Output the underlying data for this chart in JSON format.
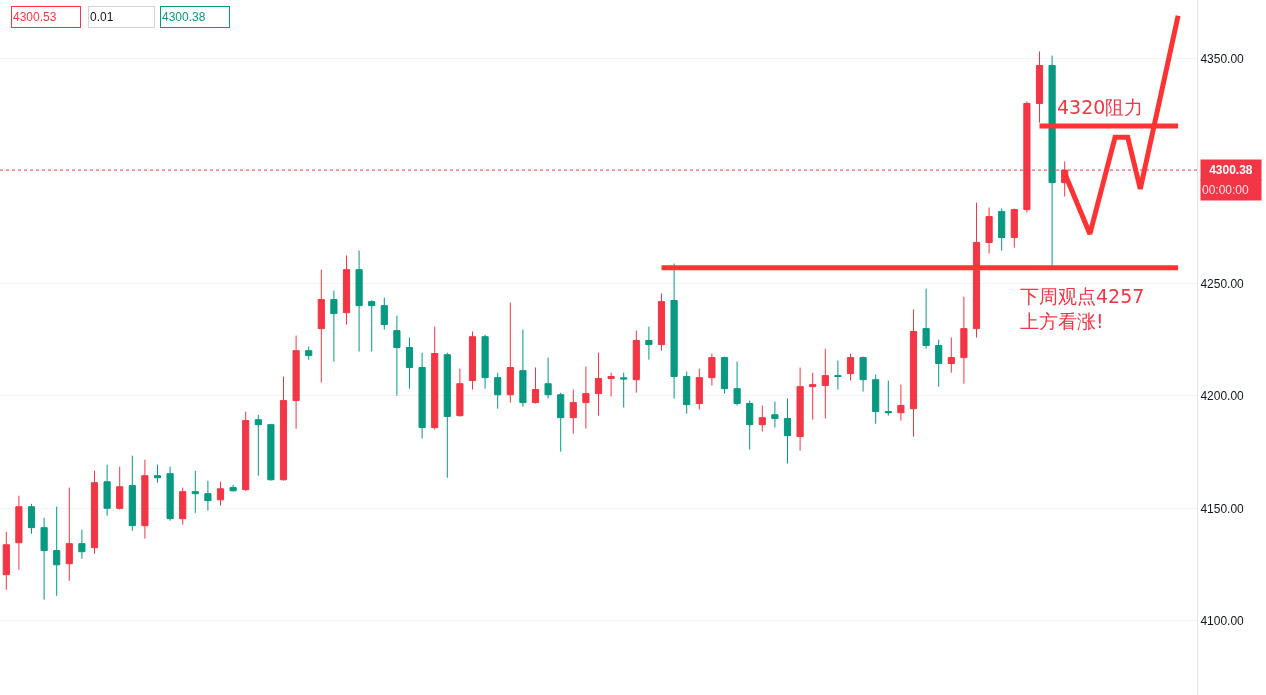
{
  "chart_data": {
    "type": "candlestick",
    "categories": [
      null,
      null,
      null,
      null,
      null,
      null,
      null,
      null,
      null,
      null,
      null,
      null,
      null,
      null,
      null,
      null,
      null,
      null,
      null,
      null,
      null,
      null,
      null,
      null,
      null,
      null,
      null,
      null,
      null,
      null,
      null,
      null,
      null,
      null,
      null,
      null,
      null,
      null,
      null,
      null,
      null,
      null,
      null,
      null,
      null,
      null,
      null,
      null,
      null,
      null,
      null,
      null,
      null,
      null,
      null,
      null,
      null,
      null,
      null,
      null,
      null,
      null,
      null,
      null,
      null,
      null,
      null,
      null,
      null,
      null,
      null,
      null,
      null,
      null,
      null,
      null,
      null,
      null,
      null,
      null,
      null,
      null,
      null,
      null,
      null,
      null,
      null,
      null,
      null,
      null,
      null,
      null,
      null,
      null,
      null
    ],
    "ohlc": [
      [
        4120.5,
        4139.6,
        4113.8,
        4133.8
      ],
      [
        4134.7,
        4155.6,
        4122.7,
        4150.7
      ],
      [
        4150.7,
        4152.0,
        4138.7,
        4141.4
      ],
      [
        4141.4,
        4145.8,
        4109.4,
        4131.2
      ],
      [
        4131.2,
        4150.7,
        4111.1,
        4124.9
      ],
      [
        4125.4,
        4159.2,
        4117.8,
        4134.3
      ],
      [
        4134.3,
        4140.5,
        4127.6,
        4130.7
      ],
      [
        4132.5,
        4166.7,
        4129.8,
        4161.4
      ],
      [
        4161.8,
        4169.4,
        4146.7,
        4150.0
      ],
      [
        4150.0,
        4168.5,
        4149.4,
        4159.6
      ],
      [
        4160.1,
        4173.4,
        4140.0,
        4142.3
      ],
      [
        4142.3,
        4171.6,
        4136.5,
        4164.5
      ],
      [
        4164.5,
        4169.4,
        4161.4,
        4163.6
      ],
      [
        4165.4,
        4168.5,
        4144.5,
        4145.4
      ],
      [
        4145.4,
        4159.2,
        4142.7,
        4157.4
      ],
      [
        4157.4,
        4166.7,
        4148.0,
        4156.5
      ],
      [
        4156.5,
        4162.3,
        4149.0,
        4153.4
      ],
      [
        4153.8,
        4161.8,
        4151.2,
        4158.7
      ],
      [
        4159.2,
        4160.5,
        4157.5,
        4157.8
      ],
      [
        4158.3,
        4193.0,
        4157.8,
        4189.0
      ],
      [
        4189.4,
        4191.6,
        4164.5,
        4187.2
      ],
      [
        4187.2,
        4187.6,
        4162.3,
        4162.7
      ],
      [
        4162.7,
        4208.6,
        4162.3,
        4197.9
      ],
      [
        4197.9,
        4226.8,
        4185.4,
        4220.1
      ],
      [
        4220.1,
        4221.9,
        4216.1,
        4217.9
      ],
      [
        4229.9,
        4256.1,
        4205.9,
        4242.8
      ],
      [
        4242.8,
        4246.8,
        4215.2,
        4236.6
      ],
      [
        4237.0,
        4262.4,
        4231.7,
        4256.1
      ],
      [
        4256.1,
        4264.6,
        4219.7,
        4240.1
      ],
      [
        4241.9,
        4242.5,
        4219.7,
        4240.1
      ],
      [
        4240.1,
        4243.7,
        4229.5,
        4231.7
      ],
      [
        4229.0,
        4235.7,
        4200.1,
        4221.5
      ],
      [
        4221.5,
        4225.9,
        4203.2,
        4212.6
      ],
      [
        4212.6,
        4219.2,
        4181.0,
        4185.9
      ],
      [
        4185.9,
        4230.8,
        4185.0,
        4218.8
      ],
      [
        4218.3,
        4219.2,
        4163.6,
        4190.8
      ],
      [
        4191.2,
        4212.1,
        4190.8,
        4205.4
      ],
      [
        4206.8,
        4228.6,
        4202.8,
        4226.3
      ],
      [
        4226.3,
        4227.2,
        4203.2,
        4208.1
      ],
      [
        4208.1,
        4210.3,
        4194.3,
        4200.5
      ],
      [
        4200.5,
        4241.5,
        4197.0,
        4212.6
      ],
      [
        4211.2,
        4229.5,
        4195.2,
        4197.0
      ],
      [
        4197.0,
        4212.6,
        4196.6,
        4202.8
      ],
      [
        4205.4,
        4217.0,
        4198.8,
        4200.5
      ],
      [
        4200.5,
        4201.4,
        4175.2,
        4190.3
      ],
      [
        4190.3,
        4202.8,
        4183.2,
        4197.0
      ],
      [
        4197.0,
        4213.0,
        4185.4,
        4201.0
      ],
      [
        4201.0,
        4219.2,
        4191.2,
        4207.7
      ],
      [
        4207.7,
        4210.3,
        4199.7,
        4208.6
      ],
      [
        4208.0,
        4210.3,
        4194.8,
        4207.5
      ],
      [
        4207.2,
        4229.0,
        4201.4,
        4224.6
      ],
      [
        4224.6,
        4230.8,
        4216.1,
        4222.8
      ],
      [
        4222.8,
        4245.5,
        4220.1,
        4241.9
      ],
      [
        4242.4,
        4258.8,
        4198.8,
        4208.6
      ],
      [
        4208.6,
        4210.8,
        4192.1,
        4196.1
      ],
      [
        4196.6,
        4212.1,
        4193.9,
        4208.1
      ],
      [
        4208.1,
        4218.8,
        4204.6,
        4217.0
      ],
      [
        4217.0,
        4217.5,
        4201.0,
        4203.2
      ],
      [
        4203.2,
        4215.2,
        4195.7,
        4196.6
      ],
      [
        4196.6,
        4197.9,
        4176.1,
        4187.2
      ],
      [
        4187.2,
        4195.7,
        4184.1,
        4190.3
      ],
      [
        4191.6,
        4197.4,
        4185.9,
        4189.9
      ],
      [
        4189.9,
        4198.8,
        4169.9,
        4182.3
      ],
      [
        4181.9,
        4212.6,
        4175.6,
        4204.1
      ],
      [
        4204.1,
        4210.3,
        4189.4,
        4205.0
      ],
      [
        4204.6,
        4221.0,
        4189.9,
        4209.0
      ],
      [
        4209.0,
        4215.7,
        4202.8,
        4208.6
      ],
      [
        4209.9,
        4218.8,
        4206.8,
        4217.0
      ],
      [
        4217.0,
        4217.5,
        4201.9,
        4207.2
      ],
      [
        4207.2,
        4209.5,
        4187.6,
        4193.0
      ],
      [
        4193.0,
        4206.8,
        4191.2,
        4192.5
      ],
      [
        4192.5,
        4205.0,
        4189.0,
        4195.7
      ],
      [
        4194.3,
        4238.4,
        4181.9,
        4228.6
      ],
      [
        4229.9,
        4247.7,
        4221.0,
        4222.4
      ],
      [
        4222.4,
        4225.0,
        4204.1,
        4214.4
      ],
      [
        4214.4,
        4225.9,
        4210.3,
        4217.0
      ],
      [
        4217.0,
        4244.1,
        4205.4,
        4229.9
      ],
      [
        4229.9,
        4285.9,
        4225.9,
        4268.2
      ],
      [
        4268.2,
        4283.7,
        4263.3,
        4279.7
      ],
      [
        4282.0,
        4283.3,
        4264.6,
        4270.4
      ],
      [
        4270.4,
        4283.3,
        4265.9,
        4282.8
      ],
      [
        4282.8,
        4330.9,
        4281.5,
        4330.0
      ],
      [
        4330.0,
        4353.1,
        4321.5,
        4346.9
      ],
      [
        4346.9,
        4351.3,
        4257.5,
        4294.8
      ],
      [
        4294.8,
        4304.2,
        4288.6,
        4300.38
      ],
      null,
      null,
      null,
      null,
      null,
      null,
      null,
      null,
      null,
      null
    ],
    "colors": [
      "#f23645",
      "#f23645",
      "#089981",
      "#089981",
      "#089981",
      "#f23645",
      "#089981",
      "#f23645",
      "#089981",
      "#f23645",
      "#089981",
      "#f23645",
      "#089981",
      "#089981",
      "#f23645",
      "#089981",
      "#089981",
      "#f23645",
      "#089981",
      "#f23645",
      "#089981",
      "#089981",
      "#f23645",
      "#f23645",
      "#089981",
      "#f23645",
      "#089981",
      "#f23645",
      "#089981",
      "#089981",
      "#089981",
      "#089981",
      "#089981",
      "#089981",
      "#f23645",
      "#089981",
      "#f23645",
      "#f23645",
      "#089981",
      "#089981",
      "#f23645",
      "#089981",
      "#f23645",
      "#089981",
      "#089981",
      "#f23645",
      "#f23645",
      "#f23645",
      "#f23645",
      "#089981",
      "#f23645",
      "#089981",
      "#f23645",
      "#089981",
      "#089981",
      "#f23645",
      "#f23645",
      "#089981",
      "#089981",
      "#089981",
      "#f23645",
      "#089981",
      "#089981",
      "#f23645",
      "#f23645",
      "#f23645",
      "#089981",
      "#f23645",
      "#089981",
      "#089981",
      "#089981",
      "#f23645",
      "#f23645",
      "#089981",
      "#089981",
      "#f23645",
      "#f23645",
      "#f23645",
      "#f23645",
      "#089981",
      "#f23645",
      "#f23645",
      "#f23645",
      "#089981",
      "#f23645",
      null,
      null,
      null,
      null,
      null,
      null,
      null,
      null,
      null,
      null
    ],
    "series": [
      {
        "type": "line",
        "color": "#ff3333",
        "values": [
          null,
          null,
          null,
          null,
          null,
          null,
          null,
          null,
          null,
          null,
          null,
          null,
          null,
          null,
          null,
          null,
          null,
          null,
          null,
          null,
          null,
          null,
          null,
          null,
          null,
          null,
          null,
          null,
          null,
          null,
          null,
          null,
          null,
          null,
          null,
          null,
          null,
          null,
          null,
          null,
          null,
          null,
          null,
          null,
          null,
          null,
          null,
          null,
          null,
          null,
          null,
          null,
          4257,
          null,
          null,
          null,
          null,
          null,
          null,
          null,
          null,
          null,
          null,
          null,
          null,
          null,
          null,
          null,
          null,
          null,
          null,
          null,
          null,
          null,
          null,
          null,
          null,
          null,
          null,
          null,
          null,
          null,
          null,
          null,
          null,
          null,
          null,
          null,
          null,
          null,
          null,
          null,
          null,
          4257,
          null
        ]
      },
      {
        "type": "line",
        "color": "#ff3333",
        "values": [
          null,
          null,
          null,
          null,
          null,
          null,
          null,
          null,
          null,
          null,
          null,
          null,
          null,
          null,
          null,
          null,
          null,
          null,
          null,
          null,
          null,
          null,
          null,
          null,
          null,
          null,
          null,
          null,
          null,
          null,
          null,
          null,
          null,
          null,
          null,
          null,
          null,
          null,
          null,
          null,
          null,
          null,
          null,
          null,
          null,
          null,
          null,
          null,
          null,
          null,
          null,
          null,
          null,
          null,
          null,
          null,
          null,
          null,
          null,
          null,
          null,
          null,
          null,
          null,
          null,
          null,
          null,
          null,
          null,
          null,
          null,
          null,
          null,
          null,
          null,
          null,
          null,
          null,
          null,
          null,
          null,
          null,
          4320,
          null,
          null,
          null,
          null,
          null,
          null,
          null,
          null,
          null,
          null,
          4320,
          null
        ]
      },
      {
        "type": "line",
        "color": "#ff3333",
        "values": [
          null,
          null,
          null,
          null,
          null,
          null,
          null,
          null,
          null,
          null,
          null,
          null,
          null,
          null,
          null,
          null,
          null,
          null,
          null,
          null,
          null,
          null,
          null,
          null,
          null,
          null,
          null,
          null,
          null,
          null,
          null,
          null,
          null,
          null,
          null,
          null,
          null,
          null,
          null,
          null,
          null,
          null,
          null,
          null,
          null,
          null,
          null,
          null,
          null,
          null,
          null,
          null,
          null,
          null,
          null,
          null,
          null,
          null,
          null,
          null,
          null,
          null,
          null,
          null,
          null,
          null,
          null,
          null,
          null,
          null,
          null,
          null,
          null,
          null,
          null,
          null,
          null,
          null,
          null,
          null,
          null,
          null,
          null,
          null,
          4299,
          null,
          4272,
          null,
          4315,
          4315,
          4292,
          null,
          null,
          4369,
          null
        ]
      }
    ],
    "ylim": [
      4067,
      4376
    ],
    "yticks": [
      {
        "value": 4100,
        "label": "4100.00"
      },
      {
        "value": 4150,
        "label": "4150.00"
      },
      {
        "value": 4200,
        "label": "4200.00"
      },
      {
        "value": 4250,
        "label": "4250.00"
      },
      {
        "value": 4350,
        "label": "4350.00"
      }
    ],
    "ref_lines": [
      {
        "axis": "y",
        "value": 4300.38,
        "label": "4300.38",
        "color": "#f23645",
        "line_style": "dotted"
      }
    ],
    "annotations": [
      "4300.53",
      "0.01",
      "4300.38",
      "4320阻力",
      "下周观点4257\n上方看涨!",
      "00:00:00"
    ],
    "grid": "y",
    "tick_labels": "y",
    "line_style": "solid",
    "marker": "none"
  }
}
